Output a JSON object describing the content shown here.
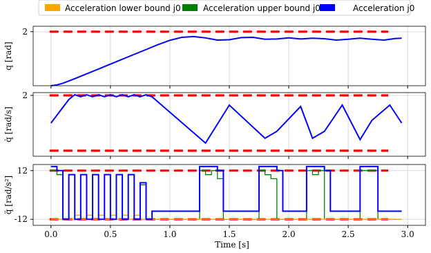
{
  "legend": {
    "items": [
      {
        "label": "Acceleration lower bound j0",
        "color": "#ffa500"
      },
      {
        "label": "Acceleration upper bound j0",
        "color": "#008000"
      },
      {
        "label": "Acceleration j0",
        "color": "#0000ff"
      }
    ]
  },
  "xlabel": "Time [s]",
  "colors": {
    "signal": "#0000ff",
    "limit": "#ff0000",
    "lower": "#ffa500",
    "upper": "#008000",
    "grid": "#d9d9d9"
  },
  "chart_data": [
    {
      "type": "line",
      "ylabel": "q [rad]",
      "xlim": [
        -0.15,
        3.15
      ],
      "ylim": [
        0,
        2.2
      ],
      "yticks": [
        {
          "value": 2,
          "label": "2"
        }
      ],
      "xticks": [
        0.0,
        0.5,
        1.0,
        1.5,
        2.0,
        2.5,
        3.0
      ],
      "limits": [
        2
      ],
      "series": [
        {
          "kind": "signal",
          "x": [
            0.0,
            0.05,
            0.1,
            0.2,
            0.4,
            0.6,
            0.8,
            0.9,
            1.0,
            1.1,
            1.2,
            1.3,
            1.4,
            1.5,
            1.6,
            1.7,
            1.8,
            1.9,
            2.0,
            2.1,
            2.2,
            2.3,
            2.4,
            2.5,
            2.6,
            2.7,
            2.8,
            2.9,
            2.95
          ],
          "y": [
            0.0,
            0.03,
            0.09,
            0.26,
            0.62,
            0.98,
            1.34,
            1.52,
            1.68,
            1.79,
            1.82,
            1.77,
            1.69,
            1.7,
            1.78,
            1.79,
            1.72,
            1.73,
            1.77,
            1.73,
            1.76,
            1.74,
            1.69,
            1.72,
            1.76,
            1.72,
            1.69,
            1.75,
            1.76
          ]
        }
      ]
    },
    {
      "type": "line",
      "ylabel": "q̇ [rad/s]",
      "xlim": [
        -0.15,
        3.15
      ],
      "ylim": [
        -2.4,
        2.2
      ],
      "yticks": [
        {
          "value": 2,
          "label": "2"
        }
      ],
      "xticks": [
        0.0,
        0.5,
        1.0,
        1.5,
        2.0,
        2.5,
        3.0
      ],
      "limits": [
        2,
        -2
      ],
      "series": [
        {
          "kind": "signal",
          "x": [
            0.0,
            0.15,
            0.2,
            0.25,
            0.3,
            0.35,
            0.4,
            0.45,
            0.5,
            0.55,
            0.6,
            0.65,
            0.7,
            0.75,
            0.8,
            0.85,
            1.3,
            1.5,
            1.8,
            1.9,
            2.1,
            2.2,
            2.3,
            2.45,
            2.6,
            2.7,
            2.85,
            2.95
          ],
          "y": [
            0.0,
            1.7,
            2.05,
            1.9,
            2.05,
            1.9,
            2.05,
            1.9,
            2.05,
            1.9,
            2.05,
            1.9,
            2.05,
            1.9,
            2.05,
            1.9,
            -1.45,
            1.3,
            -1.1,
            -0.6,
            1.2,
            -1.1,
            -0.6,
            1.3,
            -1.2,
            0.2,
            1.3,
            0.0
          ]
        }
      ]
    },
    {
      "type": "line",
      "ylabel": "q̈ [rad/s²]",
      "xlim": [
        -0.15,
        3.15
      ],
      "ylim": [
        -15,
        15
      ],
      "yticks": [
        {
          "value": 12,
          "label": "12"
        },
        {
          "value": -12,
          "label": "-12"
        }
      ],
      "xticks": [
        0.0,
        0.5,
        1.0,
        1.5,
        2.0,
        2.5,
        3.0
      ],
      "limits": [
        12,
        -12
      ],
      "series": [
        {
          "kind": "upper",
          "step": true,
          "x": [
            0.0,
            0.05,
            0.1,
            0.15,
            0.2,
            0.25,
            0.3,
            0.35,
            0.4,
            0.45,
            0.5,
            0.55,
            0.6,
            0.65,
            0.7,
            0.75,
            0.8,
            0.85,
            1.25,
            1.3,
            1.35,
            1.4,
            1.45,
            1.75,
            1.8,
            1.85,
            1.9,
            1.95,
            2.15,
            2.2,
            2.25,
            2.3,
            2.35,
            2.6,
            2.65,
            2.75,
            2.8,
            2.95
          ],
          "y": [
            12,
            10,
            -12,
            10,
            -12,
            10,
            -12,
            10,
            -12,
            10,
            -12,
            10,
            -12,
            10,
            -12,
            5,
            -12,
            -12,
            12,
            10,
            12,
            8,
            -12,
            12,
            10,
            8,
            -12,
            -12,
            12,
            10,
            12,
            -12,
            -12,
            12,
            12,
            -12,
            -12,
            -12
          ]
        },
        {
          "kind": "lower",
          "step": true,
          "x": [
            0.0,
            0.05,
            0.1,
            0.15,
            0.2,
            0.25,
            0.3,
            0.35,
            0.4,
            0.45,
            0.5,
            0.55,
            0.6,
            0.65,
            0.7,
            0.75,
            0.8,
            0.85,
            1.25,
            1.3,
            1.4,
            1.45,
            1.75,
            1.85,
            1.95,
            2.15,
            2.2,
            2.3,
            2.35,
            2.6,
            2.75,
            2.8,
            2.95
          ],
          "y": [
            -12,
            -12,
            -12,
            -12,
            -10,
            -12,
            -10,
            -12,
            -10,
            -12,
            -10,
            -12,
            -10,
            -12,
            -10,
            -12,
            -12,
            -12,
            -12,
            -12,
            -12,
            -12,
            -12,
            -12,
            -12,
            -12,
            -12,
            -12,
            -12,
            -12,
            -12,
            -12,
            -12
          ]
        },
        {
          "kind": "signal",
          "step": true,
          "x": [
            0.0,
            0.05,
            0.1,
            0.15,
            0.2,
            0.25,
            0.3,
            0.35,
            0.4,
            0.45,
            0.5,
            0.55,
            0.6,
            0.65,
            0.7,
            0.75,
            0.8,
            0.85,
            1.25,
            1.4,
            1.45,
            1.75,
            1.9,
            1.95,
            2.15,
            2.3,
            2.35,
            2.6,
            2.75,
            2.8,
            2.95
          ],
          "y": [
            14,
            12,
            -12,
            10,
            -12,
            10,
            -12,
            10,
            -12,
            10,
            -12,
            10,
            -12,
            10,
            -12,
            6,
            -12,
            -8,
            14,
            12,
            -8,
            14,
            12,
            -8,
            14,
            12,
            -8,
            14,
            -8,
            -8,
            -8
          ]
        }
      ]
    }
  ]
}
